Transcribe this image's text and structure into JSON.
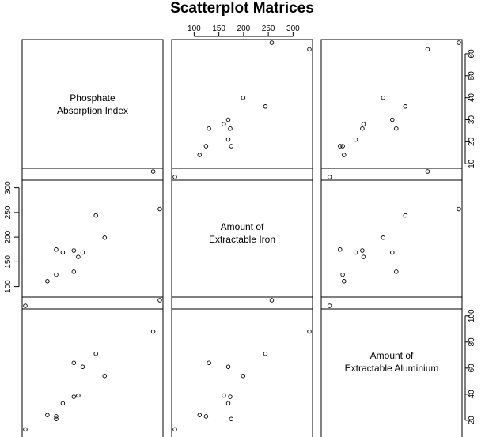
{
  "chart_data": {
    "type": "scatter",
    "title": "Scatterplot Matrices",
    "variables": [
      {
        "label_lines": [
          "Phosphate",
          "Absorption Index"
        ],
        "ticks": [
          10,
          20,
          30,
          40,
          50,
          60
        ],
        "range": [
          4,
          65
        ]
      },
      {
        "label_lines": [
          "Amount of",
          "Extractable Iron"
        ],
        "ticks": [
          100,
          150,
          200,
          250,
          300
        ],
        "range": [
          61,
          333
        ]
      },
      {
        "label_lines": [
          "Amount of",
          "Extractable Aluminium"
        ],
        "ticks": [
          20,
          40,
          60,
          80,
          100
        ],
        "range": [
          9,
          112
        ]
      }
    ],
    "observations": [
      {
        "phosphate": 4,
        "iron": 61,
        "aluminium": 13
      },
      {
        "phosphate": 18,
        "iron": 175,
        "aluminium": 21
      },
      {
        "phosphate": 14,
        "iron": 111,
        "aluminium": 24
      },
      {
        "phosphate": 18,
        "iron": 124,
        "aluminium": 23
      },
      {
        "phosphate": 26,
        "iron": 130,
        "aluminium": 64
      },
      {
        "phosphate": 26,
        "iron": 173,
        "aluminium": 38
      },
      {
        "phosphate": 21,
        "iron": 169,
        "aluminium": 33
      },
      {
        "phosphate": 30,
        "iron": 169,
        "aluminium": 61
      },
      {
        "phosphate": 28,
        "iron": 160,
        "aluminium": 39
      },
      {
        "phosphate": 36,
        "iron": 244,
        "aluminium": 71
      },
      {
        "phosphate": 65,
        "iron": 257,
        "aluminium": 112
      },
      {
        "phosphate": 62,
        "iron": 333,
        "aluminium": 88
      },
      {
        "phosphate": 40,
        "iron": 199,
        "aluminium": 54
      }
    ],
    "grid": false,
    "legend": "none"
  }
}
